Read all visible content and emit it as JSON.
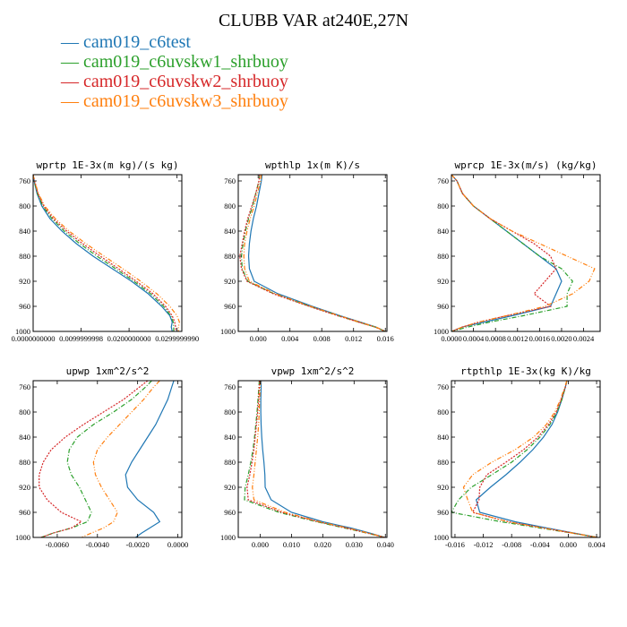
{
  "title": "CLUBB VAR at240E,27N",
  "colors": [
    "#1f77b4",
    "#2ca02c",
    "#d62728",
    "#ff7f0e"
  ],
  "legend": [
    {
      "label": "cam019_c6test",
      "color": "#1f77b4",
      "dash": "solid"
    },
    {
      "label": "cam019_c6uvskw1_shrbuoy",
      "color": "#2ca02c",
      "dash": "dashdot"
    },
    {
      "label": "cam019_c6uvskw2_shrbuoy",
      "color": "#d62728",
      "dash": "dotted"
    },
    {
      "label": "cam019_c6uvskw3_shrbuoy",
      "color": "#ff7f0e",
      "dash": "dashdotdot"
    }
  ],
  "chart_data": [
    {
      "type": "line",
      "title": "wprtp  1E-3x(m kg)/(s kg)",
      "xlim": [
        0.0,
        0.031
      ],
      "ylim": [
        1000,
        750
      ],
      "xticks": [
        0.0,
        0.0099999998,
        0.02,
        0.029999999
      ],
      "xticklabels": [
        "0.0000000000",
        "0.0099999998",
        "0.0200000000",
        "0.0299999990"
      ],
      "yticks": [
        760,
        800,
        840,
        880,
        920,
        960,
        1000
      ],
      "levels": [
        750,
        760,
        780,
        800,
        820,
        840,
        860,
        880,
        900,
        920,
        940,
        960,
        975,
        985,
        993,
        1000
      ],
      "series": [
        {
          "values": [
            0.0,
            0.0002,
            0.0008,
            0.0018,
            0.0035,
            0.006,
            0.009,
            0.0125,
            0.0165,
            0.0205,
            0.024,
            0.0268,
            0.0285,
            0.029,
            0.0288,
            0.029
          ]
        },
        {
          "values": [
            0.0,
            0.0002,
            0.0009,
            0.002,
            0.0039,
            0.0065,
            0.0097,
            0.0133,
            0.0172,
            0.021,
            0.0245,
            0.0272,
            0.0287,
            0.0292,
            0.0293,
            0.0293
          ]
        },
        {
          "values": [
            0.0,
            0.0003,
            0.001,
            0.0022,
            0.0042,
            0.007,
            0.0103,
            0.014,
            0.0178,
            0.0215,
            0.025,
            0.0276,
            0.029,
            0.0295,
            0.0297,
            0.0297
          ]
        },
        {
          "values": [
            0.0,
            0.0003,
            0.0011,
            0.0024,
            0.0046,
            0.0075,
            0.011,
            0.0148,
            0.0187,
            0.0224,
            0.0258,
            0.0285,
            0.03,
            0.0305,
            0.0303,
            0.0303
          ]
        }
      ]
    },
    {
      "type": "line",
      "title": "wpthlp  1x(m K)/s",
      "xlim": [
        -0.0025,
        0.0162
      ],
      "ylim": [
        1000,
        750
      ],
      "xticks": [
        0.0,
        0.004,
        0.008,
        0.012,
        0.016
      ],
      "xticklabels": [
        "0.000",
        "0.004",
        "0.008",
        "0.012",
        "0.016"
      ],
      "yticks": [
        760,
        800,
        840,
        880,
        920,
        960,
        1000
      ],
      "levels": [
        750,
        760,
        780,
        800,
        820,
        840,
        860,
        880,
        900,
        920,
        940,
        960,
        975,
        985,
        993,
        1000
      ],
      "series": [
        {
          "values": [
            0.0005,
            0.0004,
            0.0001,
            -0.0002,
            -0.0006,
            -0.0009,
            -0.0011,
            -0.0012,
            -0.0011,
            -0.0005,
            0.0025,
            0.0068,
            0.0103,
            0.0128,
            0.0148,
            0.016
          ]
        },
        {
          "values": [
            0.0002,
            0.0001,
            -0.0003,
            -0.0007,
            -0.0012,
            -0.0016,
            -0.0019,
            -0.0021,
            -0.002,
            -0.0013,
            0.002,
            0.0065,
            0.0101,
            0.0126,
            0.0147,
            0.016
          ]
        },
        {
          "values": [
            0.0002,
            0.0001,
            -0.0003,
            -0.0008,
            -0.0013,
            -0.0017,
            -0.002,
            -0.0023,
            -0.0021,
            -0.0014,
            0.0019,
            0.0064,
            0.01,
            0.0126,
            0.0147,
            0.016
          ]
        },
        {
          "values": [
            0.0004,
            0.0003,
            -0.0001,
            -0.0005,
            -0.001,
            -0.0014,
            -0.0017,
            -0.0018,
            -0.0017,
            -0.0011,
            0.0022,
            0.0066,
            0.0102,
            0.0127,
            0.0148,
            0.016
          ]
        }
      ]
    },
    {
      "type": "line",
      "title": "wprcp  1E-3x(m/s) (kg/kg)",
      "xlim": [
        0.0,
        0.0027
      ],
      "ylim": [
        1000,
        750
      ],
      "xticks": [
        0.0,
        0.0004,
        0.0008,
        0.0012,
        0.0016,
        0.002,
        0.0024
      ],
      "xticklabels": [
        "0.0000",
        "0.0004",
        "0.0008",
        "0.0012",
        "0.0016",
        "0.0020",
        "0.0024"
      ],
      "yticks": [
        760,
        800,
        840,
        880,
        920,
        960,
        1000
      ],
      "levels": [
        750,
        760,
        780,
        800,
        820,
        840,
        860,
        880,
        900,
        920,
        940,
        960,
        975,
        985,
        993,
        1000
      ],
      "series": [
        {
          "values": [
            0.0,
            0.0001,
            0.0002,
            0.0004,
            0.0007,
            0.001,
            0.0013,
            0.0016,
            0.0019,
            0.002,
            0.0019,
            0.0018,
            0.0011,
            0.0006,
            0.0002,
            0.0
          ]
        },
        {
          "values": [
            0.0,
            0.0001,
            0.0002,
            0.0004,
            0.0007,
            0.001,
            0.0013,
            0.0016,
            0.002,
            0.0022,
            0.0021,
            0.0021,
            0.0013,
            0.0007,
            0.0003,
            0.0
          ]
        },
        {
          "values": [
            0.0,
            0.0001,
            0.0002,
            0.0004,
            0.0007,
            0.0011,
            0.0015,
            0.0018,
            0.0019,
            0.0017,
            0.0015,
            0.0018,
            0.001,
            0.0005,
            0.0002,
            0.0
          ]
        },
        {
          "values": [
            0.0,
            0.0001,
            0.0002,
            0.0004,
            0.0007,
            0.0011,
            0.0016,
            0.0021,
            0.0026,
            0.0025,
            0.0022,
            0.0017,
            0.001,
            0.0005,
            0.0002,
            0.0
          ]
        }
      ]
    },
    {
      "type": "line",
      "title": "upwp  1xm^2/s^2",
      "xlim": [
        -0.0072,
        0.0002
      ],
      "ylim": [
        1000,
        750
      ],
      "xticks": [
        -0.006,
        -0.004,
        -0.002,
        0.0
      ],
      "xticklabels": [
        "-0.0060",
        "-0.0040",
        "-0.0020",
        "0.0000"
      ],
      "yticks": [
        760,
        800,
        840,
        880,
        920,
        960,
        1000
      ],
      "levels": [
        750,
        760,
        780,
        800,
        820,
        840,
        860,
        880,
        900,
        920,
        940,
        960,
        975,
        985,
        993,
        1000
      ],
      "series": [
        {
          "values": [
            -0.0002,
            -0.0003,
            -0.0005,
            -0.0008,
            -0.0011,
            -0.0015,
            -0.0019,
            -0.0023,
            -0.0026,
            -0.0025,
            -0.002,
            -0.0012,
            -0.0009,
            -0.0014,
            -0.0018,
            -0.0021
          ]
        },
        {
          "values": [
            -0.0013,
            -0.0016,
            -0.0023,
            -0.0032,
            -0.0042,
            -0.005,
            -0.0054,
            -0.0055,
            -0.0053,
            -0.0049,
            -0.0046,
            -0.0043,
            -0.0045,
            -0.0053,
            -0.0062,
            -0.0068
          ]
        },
        {
          "values": [
            -0.0015,
            -0.0019,
            -0.0027,
            -0.0037,
            -0.0047,
            -0.0056,
            -0.0063,
            -0.0067,
            -0.0069,
            -0.0069,
            -0.0065,
            -0.0058,
            -0.0048,
            -0.0053,
            -0.0062,
            -0.0068
          ]
        },
        {
          "values": [
            -0.0009,
            -0.0012,
            -0.0017,
            -0.0023,
            -0.0029,
            -0.0035,
            -0.004,
            -0.0042,
            -0.0041,
            -0.0038,
            -0.0034,
            -0.003,
            -0.0032,
            -0.0037,
            -0.0043,
            -0.0048
          ]
        }
      ]
    },
    {
      "type": "line",
      "title": "vpwp  1xm^2/s^2",
      "xlim": [
        -0.007,
        0.0405
      ],
      "ylim": [
        1000,
        750
      ],
      "xticks": [
        0.0,
        0.01,
        0.02,
        0.03,
        0.04
      ],
      "xticklabels": [
        "0.000",
        "0.010",
        "0.020",
        "0.030",
        "0.040"
      ],
      "yticks": [
        760,
        800,
        840,
        880,
        920,
        960,
        1000
      ],
      "levels": [
        750,
        760,
        780,
        800,
        820,
        840,
        860,
        880,
        900,
        920,
        940,
        960,
        975,
        985,
        993,
        1000
      ],
      "series": [
        {
          "values": [
            0.0003,
            0.0003,
            0.0002,
            0.0002,
            0.0003,
            0.0005,
            0.0008,
            0.0012,
            0.0015,
            0.0016,
            0.0035,
            0.01,
            0.02,
            0.029,
            0.035,
            0.0398
          ]
        },
        {
          "values": [
            -0.0003,
            -0.0004,
            -0.0007,
            -0.001,
            -0.0014,
            -0.0018,
            -0.0023,
            -0.003,
            -0.0038,
            -0.0048,
            -0.005,
            0.006,
            0.018,
            0.027,
            0.034,
            0.0398
          ]
        },
        {
          "values": [
            -0.0002,
            -0.0003,
            -0.0005,
            -0.0008,
            -0.0012,
            -0.0016,
            -0.002,
            -0.0026,
            -0.0033,
            -0.0042,
            -0.0038,
            0.007,
            0.0185,
            0.0275,
            0.0342,
            0.0398
          ]
        },
        {
          "values": [
            0.0001,
            0.0,
            -0.0002,
            -0.0003,
            -0.0005,
            -0.0008,
            -0.0012,
            -0.0016,
            -0.002,
            -0.0025,
            -0.002,
            0.008,
            0.019,
            0.028,
            0.0345,
            0.0398
          ]
        }
      ]
    },
    {
      "type": "line",
      "title": "rtpthlp  1E-3x(kg K)/kg",
      "xlim": [
        -0.0165,
        0.0045
      ],
      "ylim": [
        1000,
        750
      ],
      "xticks": [
        -0.016,
        -0.012,
        -0.008,
        -0.004,
        0.0,
        0.004
      ],
      "xticklabels": [
        "-0.016",
        "-0.012",
        "-0.008",
        "-0.004",
        "0.000",
        "0.004"
      ],
      "yticks": [
        760,
        800,
        840,
        880,
        920,
        960,
        1000
      ],
      "levels": [
        750,
        760,
        780,
        800,
        820,
        840,
        860,
        880,
        900,
        920,
        940,
        960,
        975,
        985,
        993,
        1000
      ],
      "series": [
        {
          "values": [
            -0.0002,
            -0.0004,
            -0.0009,
            -0.0015,
            -0.0023,
            -0.0035,
            -0.005,
            -0.0068,
            -0.0088,
            -0.011,
            -0.013,
            -0.0125,
            -0.0075,
            -0.003,
            0.0008,
            0.0041
          ]
        },
        {
          "values": [
            -0.0002,
            -0.0004,
            -0.0009,
            -0.0016,
            -0.0026,
            -0.004,
            -0.0058,
            -0.008,
            -0.0108,
            -0.0137,
            -0.0155,
            -0.0165,
            -0.0095,
            -0.004,
            0.0005,
            0.0041
          ]
        },
        {
          "values": [
            -0.0002,
            -0.0004,
            -0.001,
            -0.0017,
            -0.0028,
            -0.0043,
            -0.0063,
            -0.0088,
            -0.0115,
            -0.0125,
            -0.0126,
            -0.0135,
            -0.0085,
            -0.0035,
            0.0006,
            0.0041
          ]
        },
        {
          "values": [
            -0.0002,
            -0.0005,
            -0.0011,
            -0.0019,
            -0.0031,
            -0.0049,
            -0.0075,
            -0.0108,
            -0.0135,
            -0.0148,
            -0.0142,
            -0.0135,
            -0.0085,
            -0.0035,
            0.0006,
            0.0041
          ]
        }
      ]
    }
  ]
}
